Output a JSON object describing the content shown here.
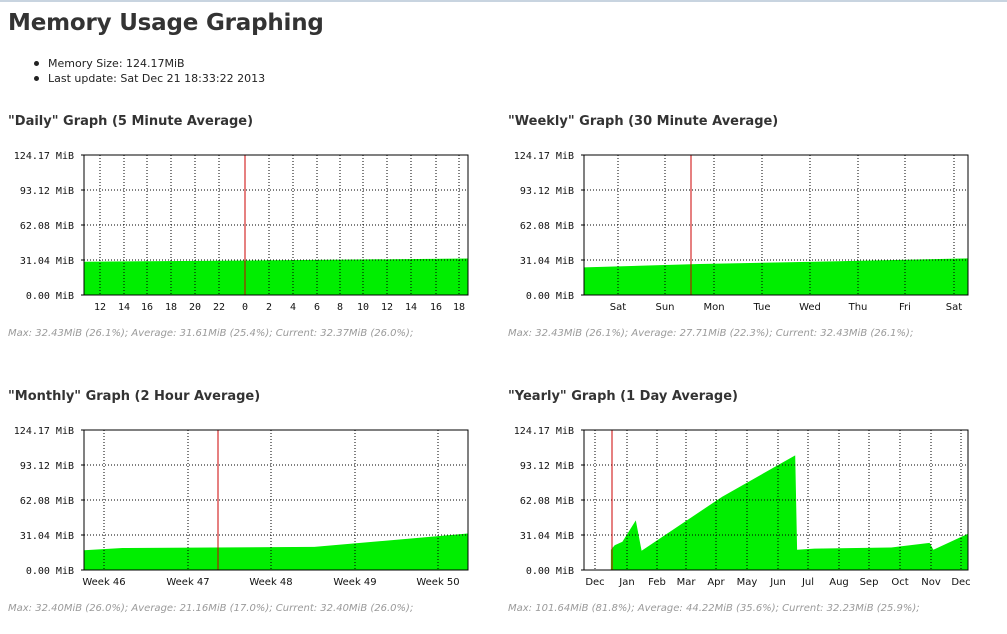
{
  "page": {
    "title": "Memory Usage Graphing",
    "info": [
      "Memory Size: 124.17MiB",
      "Last update: Sat Dec 21 18:33:22 2013"
    ]
  },
  "graphs": [
    {
      "title": "\"Daily\" Graph (5 Minute Average)",
      "stats": "Max: 32.43MiB (26.1%); Average: 31.61MiB (25.4%); Current: 32.37MiB (26.0%);",
      "y_labels": [
        "124.17 MiB",
        "93.12 MiB",
        "62.08 MiB",
        "31.04 MiB",
        "0.00 MiB"
      ],
      "x_labels": [
        "12",
        "14",
        "16",
        "18",
        "20",
        "22",
        "0",
        "2",
        "4",
        "6",
        "8",
        "10",
        "12",
        "14",
        "16",
        "18"
      ]
    },
    {
      "title": "\"Weekly\" Graph (30 Minute Average)",
      "stats": "Max: 32.43MiB (26.1%); Average: 27.71MiB (22.3%); Current: 32.43MiB (26.1%);",
      "y_labels": [
        "124.17 MiB",
        "93.12 MiB",
        "62.08 MiB",
        "31.04 MiB",
        "0.00 MiB"
      ],
      "x_labels": [
        "Sat",
        "Sun",
        "Mon",
        "Tue",
        "Wed",
        "Thu",
        "Fri",
        "Sat"
      ]
    },
    {
      "title": "\"Monthly\" Graph (2 Hour Average)",
      "stats": "Max: 32.40MiB (26.0%); Average: 21.16MiB (17.0%); Current: 32.40MiB (26.0%);",
      "y_labels": [
        "124.17 MiB",
        "93.12 MiB",
        "62.08 MiB",
        "31.04 MiB",
        "0.00 MiB"
      ],
      "x_labels": [
        "Week 46",
        "Week 47",
        "Week 48",
        "Week 49",
        "Week 50"
      ]
    },
    {
      "title": "\"Yearly\" Graph (1 Day Average)",
      "stats": "Max: 101.64MiB (81.8%); Average: 44.22MiB (35.6%); Current: 32.23MiB (25.9%);",
      "y_labels": [
        "124.17 MiB",
        "93.12 MiB",
        "62.08 MiB",
        "31.04 MiB",
        "0.00 MiB"
      ],
      "x_labels": [
        "Dec",
        "Jan",
        "Feb",
        "Mar",
        "Apr",
        "May",
        "Jun",
        "Jul",
        "Aug",
        "Sep",
        "Oct",
        "Nov",
        "Dec"
      ]
    }
  ],
  "colors": {
    "area": "#00ee00",
    "marker": "#cc0000",
    "grid": "#000000"
  },
  "chart_data": [
    {
      "type": "area",
      "ylim": [
        0,
        124.17
      ],
      "x": [
        0,
        0.5,
        1
      ],
      "values": [
        29.5,
        30.8,
        32.4
      ]
    },
    {
      "type": "area",
      "ylim": [
        0,
        124.17
      ],
      "x": [
        0,
        0.3,
        0.6,
        1
      ],
      "values": [
        24.5,
        27.5,
        29.5,
        32.43
      ]
    },
    {
      "type": "area",
      "ylim": [
        0,
        124.17
      ],
      "x": [
        0,
        0.1,
        0.6,
        1
      ],
      "values": [
        17.5,
        19.5,
        20.5,
        32.4
      ]
    },
    {
      "type": "area",
      "ylim": [
        0,
        124.17
      ],
      "x": [
        0.07,
        0.08,
        0.1,
        0.135,
        0.15,
        0.36,
        0.55,
        0.555,
        0.6,
        0.8,
        0.9,
        0.91,
        1
      ],
      "values": [
        18,
        22,
        25,
        44,
        17,
        65,
        101.64,
        18,
        19,
        20,
        24,
        18,
        32.23
      ]
    }
  ]
}
